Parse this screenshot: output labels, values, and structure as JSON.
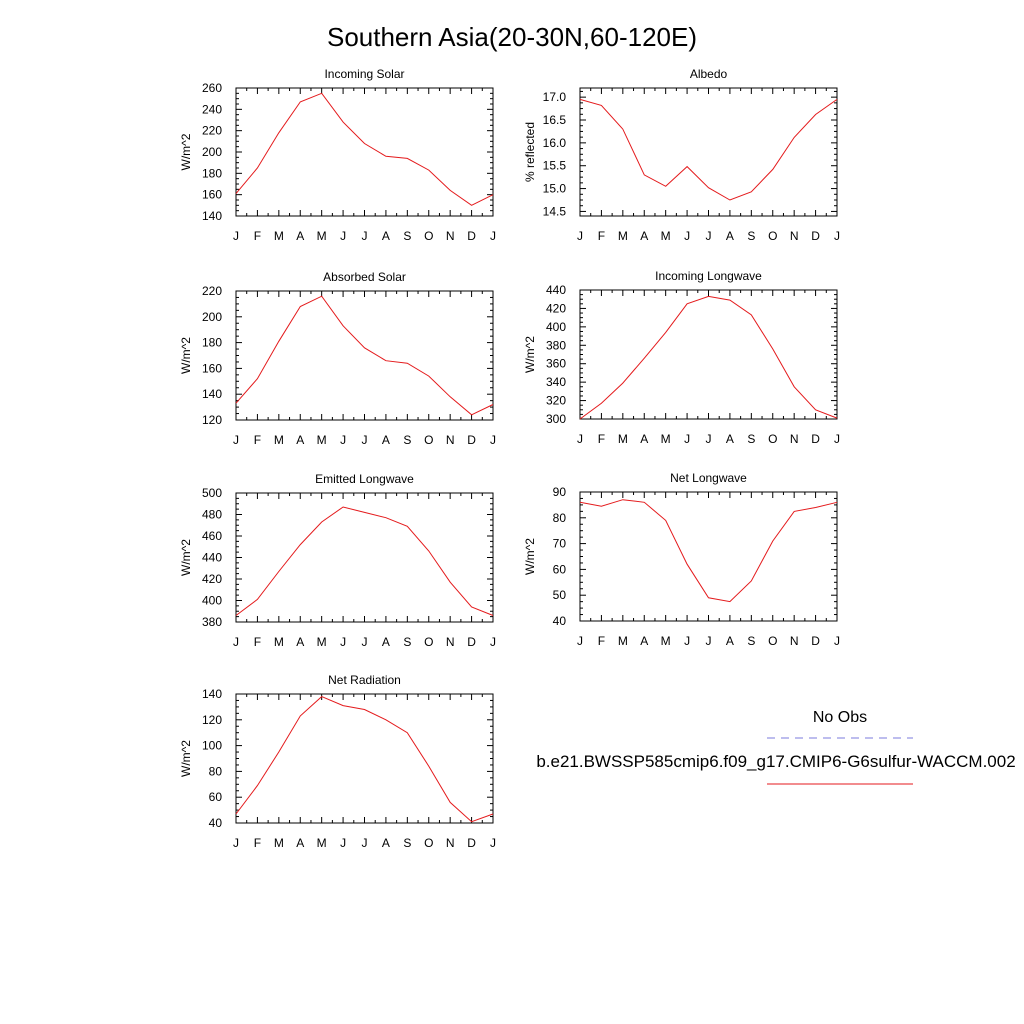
{
  "page": {
    "title": "Southern Asia(20-30N,60-120E)"
  },
  "legend": {
    "obs_label": "No Obs",
    "obs_color": "#7b7bdc",
    "model_label": "b.e21.BWSSP585cmip6.f09_g17.CMIP6-G6sulfur-WACCM.002",
    "model_color": "#e41a1c"
  },
  "chart_data": [
    {
      "type": "line",
      "title": "Incoming Solar",
      "ylabel": "W/m^2",
      "x": [
        "J",
        "F",
        "M",
        "A",
        "M",
        "J",
        "J",
        "A",
        "S",
        "O",
        "N",
        "D",
        "J"
      ],
      "ylim": [
        140,
        260
      ],
      "yticks": [
        140,
        160,
        180,
        200,
        220,
        240,
        260
      ],
      "series": [
        {
          "values": [
            161,
            185,
            218,
            247,
            255,
            228,
            208,
            196,
            194,
            183,
            164,
            150,
            160
          ]
        }
      ]
    },
    {
      "type": "line",
      "title": "Albedo",
      "ylabel": "% reflected",
      "x": [
        "J",
        "F",
        "M",
        "A",
        "M",
        "J",
        "J",
        "A",
        "S",
        "O",
        "N",
        "D",
        "J"
      ],
      "ylim": [
        14.4,
        17.2
      ],
      "yticks": [
        14.5,
        15.0,
        15.5,
        16.0,
        16.5,
        17.0
      ],
      "ytick_labels": [
        "14.5",
        "15.0",
        "15.5",
        "16.0",
        "16.5",
        "17.0"
      ],
      "series": [
        {
          "values": [
            16.95,
            16.82,
            16.3,
            15.3,
            15.05,
            15.48,
            15.02,
            14.75,
            14.93,
            15.42,
            16.12,
            16.62,
            16.95
          ]
        }
      ]
    },
    {
      "type": "line",
      "title": "Absorbed Solar",
      "ylabel": "W/m^2",
      "x": [
        "J",
        "F",
        "M",
        "A",
        "M",
        "J",
        "J",
        "A",
        "S",
        "O",
        "N",
        "D",
        "J"
      ],
      "ylim": [
        120,
        220
      ],
      "yticks": [
        120,
        140,
        160,
        180,
        200,
        220
      ],
      "series": [
        {
          "values": [
            133,
            152,
            181,
            208,
            216,
            193,
            176,
            166,
            164,
            154,
            138,
            124,
            132
          ]
        }
      ]
    },
    {
      "type": "line",
      "title": "Incoming Longwave",
      "ylabel": "W/m^2",
      "x": [
        "J",
        "F",
        "M",
        "A",
        "M",
        "J",
        "J",
        "A",
        "S",
        "O",
        "N",
        "D",
        "J"
      ],
      "ylim": [
        300,
        440
      ],
      "yticks": [
        300,
        320,
        340,
        360,
        380,
        400,
        420,
        440
      ],
      "series": [
        {
          "values": [
            300,
            317,
            339,
            366,
            394,
            425,
            433,
            429,
            413,
            376,
            335,
            310,
            301
          ]
        }
      ]
    },
    {
      "type": "line",
      "title": "Emitted Longwave",
      "ylabel": "W/m^2",
      "x": [
        "J",
        "F",
        "M",
        "A",
        "M",
        "J",
        "J",
        "A",
        "S",
        "O",
        "N",
        "D",
        "J"
      ],
      "ylim": [
        380,
        500
      ],
      "yticks": [
        380,
        400,
        420,
        440,
        460,
        480,
        500
      ],
      "series": [
        {
          "values": [
            386,
            401,
            427,
            452,
            473,
            487,
            482,
            477,
            469,
            446,
            417,
            394,
            386
          ]
        }
      ]
    },
    {
      "type": "line",
      "title": "Net Longwave",
      "ylabel": "W/m^2",
      "x": [
        "J",
        "F",
        "M",
        "A",
        "M",
        "J",
        "J",
        "A",
        "S",
        "O",
        "N",
        "D",
        "J"
      ],
      "ylim": [
        40,
        90
      ],
      "yticks": [
        40,
        50,
        60,
        70,
        80,
        90
      ],
      "series": [
        {
          "values": [
            86,
            84.5,
            87,
            86,
            79,
            62,
            49,
            47.5,
            55.5,
            71,
            82.5,
            84,
            86
          ]
        }
      ]
    },
    {
      "type": "line",
      "title": "Net Radiation",
      "ylabel": "W/m^2",
      "x": [
        "J",
        "F",
        "M",
        "A",
        "M",
        "J",
        "J",
        "A",
        "S",
        "O",
        "N",
        "D",
        "J"
      ],
      "ylim": [
        40,
        140
      ],
      "yticks": [
        40,
        60,
        80,
        100,
        120,
        140
      ],
      "series": [
        {
          "values": [
            47,
            69,
            95,
            123,
            138,
            131,
            128,
            120,
            110,
            84,
            56,
            41,
            47
          ]
        }
      ]
    }
  ]
}
